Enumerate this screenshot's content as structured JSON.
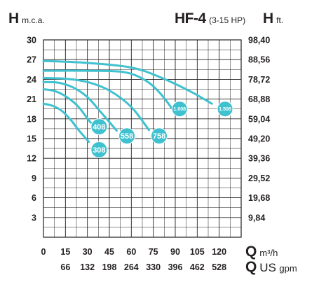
{
  "header": {
    "left_axis_symbol": "H",
    "left_axis_unit": "m.c.a.",
    "model": "HF-4",
    "power_range": "(3-15 HP)",
    "right_axis_symbol": "H",
    "right_axis_unit": "ft."
  },
  "footer": {
    "x1_symbol": "Q",
    "x1_unit": "m³/h",
    "x2_symbol": "Q",
    "x2_unit_main": "US",
    "x2_unit_sub": "gpm"
  },
  "colors": {
    "curve": "#3fc1cf",
    "grid": "#231f20",
    "text": "#231f20"
  },
  "chart_data": {
    "type": "line",
    "xlabel": "Q m³/h",
    "ylabel": "H m.c.a.",
    "xlim": [
      0,
      135
    ],
    "ylim": [
      0,
      30
    ],
    "grid": true,
    "left_ticks": [
      3,
      6,
      9,
      12,
      15,
      18,
      21,
      24,
      27,
      30
    ],
    "right_ticks": [
      {
        "value": 3,
        "label": "9,84"
      },
      {
        "value": 6,
        "label": "19,68"
      },
      {
        "value": 9,
        "label": "29,52"
      },
      {
        "value": 12,
        "label": "39,36"
      },
      {
        "value": 15,
        "label": "49,20"
      },
      {
        "value": 18,
        "label": "59,04"
      },
      {
        "value": 21,
        "label": "68,88"
      },
      {
        "value": 24,
        "label": "78,72"
      },
      {
        "value": 27,
        "label": "88,56"
      },
      {
        "value": 30,
        "label": "98,40"
      }
    ],
    "x_ticks_m3h": [
      0,
      15,
      30,
      45,
      60,
      75,
      90,
      105,
      120
    ],
    "x_ticks_gpm": [
      {
        "value": 15,
        "label": "66"
      },
      {
        "value": 30,
        "label": "132"
      },
      {
        "value": 45,
        "label": "198"
      },
      {
        "value": 60,
        "label": "264"
      },
      {
        "value": 75,
        "label": "330"
      },
      {
        "value": 90,
        "label": "396"
      },
      {
        "value": 105,
        "label": "462"
      },
      {
        "value": 120,
        "label": "528"
      }
    ],
    "series": [
      {
        "name": "308",
        "points": [
          [
            0,
            20.3
          ],
          [
            6,
            20
          ],
          [
            12,
            19.3
          ],
          [
            18,
            18
          ],
          [
            24,
            16.3
          ],
          [
            31,
            14.5
          ]
        ],
        "badge": [
          38,
          13.3
        ],
        "badge_size": "large"
      },
      {
        "name": "408",
        "points": [
          [
            0,
            22.5
          ],
          [
            8,
            22.2
          ],
          [
            16,
            21.3
          ],
          [
            24,
            19.8
          ],
          [
            32,
            17.5
          ],
          [
            37,
            16.8
          ]
        ],
        "badge": [
          38,
          16.8
        ],
        "badge_size": "large"
      },
      {
        "name": "558",
        "points": [
          [
            0,
            23.6
          ],
          [
            10,
            23.5
          ],
          [
            20,
            22.8
          ],
          [
            30,
            21.3
          ],
          [
            40,
            18.8
          ],
          [
            50,
            16.2
          ]
        ],
        "badge": [
          57,
          15.4
        ],
        "badge_size": "large"
      },
      {
        "name": "758",
        "points": [
          [
            0,
            24.2
          ],
          [
            15,
            24.1
          ],
          [
            30,
            23.6
          ],
          [
            45,
            22.3
          ],
          [
            60,
            19.8
          ],
          [
            72,
            16.3
          ]
        ],
        "badge": [
          79,
          15.4
        ],
        "badge_size": "large"
      },
      {
        "name": "1.008",
        "points": [
          [
            0,
            25.3
          ],
          [
            30,
            25.3
          ],
          [
            55,
            25.1
          ],
          [
            70,
            23.8
          ],
          [
            80,
            21.8
          ],
          [
            88,
            19.5
          ]
        ],
        "badge": [
          93,
          19.5
        ],
        "badge_size": "small"
      },
      {
        "name": "1.508",
        "points": [
          [
            0,
            26.8
          ],
          [
            30,
            26.5
          ],
          [
            60,
            25.8
          ],
          [
            80,
            24.3
          ],
          [
            100,
            22.2
          ],
          [
            115,
            20.3
          ]
        ],
        "badge": [
          124,
          19.5
        ],
        "badge_size": "small"
      }
    ]
  }
}
